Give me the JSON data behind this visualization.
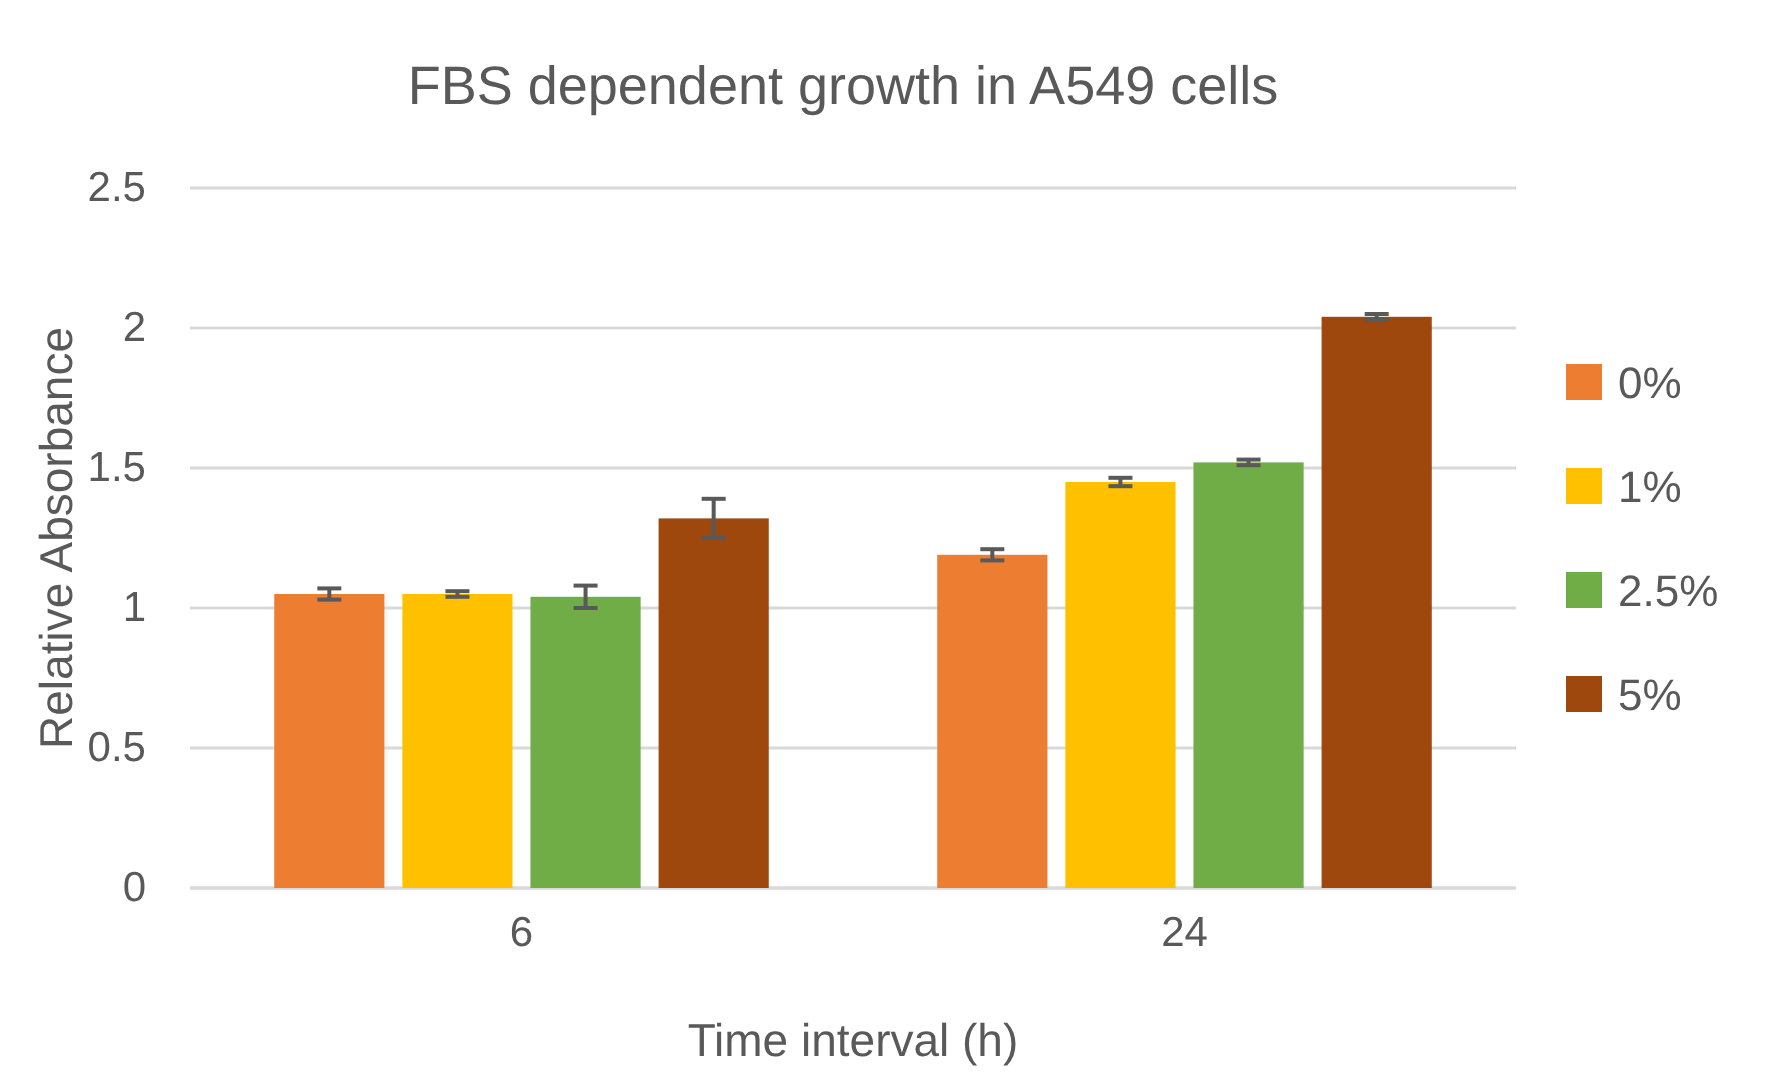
{
  "chart_data": {
    "type": "bar",
    "title": "FBS dependent  growth in A549 cells",
    "xlabel": "Time interval (h)",
    "ylabel": "Relative Absorbance",
    "categories": [
      "6",
      "24"
    ],
    "series": [
      {
        "name": "0%",
        "color": "#ed7d31",
        "values": [
          1.05,
          1.19
        ],
        "errors": [
          0.02,
          0.02
        ]
      },
      {
        "name": "1%",
        "color": "#ffc000",
        "values": [
          1.05,
          1.45
        ],
        "errors": [
          0.01,
          0.015
        ]
      },
      {
        "name": "2.5%",
        "color": "#70ad47",
        "values": [
          1.04,
          1.52
        ],
        "errors": [
          0.04,
          0.01
        ]
      },
      {
        "name": "5%",
        "color": "#9e480e",
        "values": [
          1.32,
          2.04
        ],
        "errors": [
          0.07,
          0.01
        ]
      }
    ],
    "ylim": [
      0,
      2.5
    ],
    "yticks": [
      0,
      0.5,
      1,
      1.5,
      2,
      2.5
    ],
    "grid": "y",
    "legend": "right"
  }
}
